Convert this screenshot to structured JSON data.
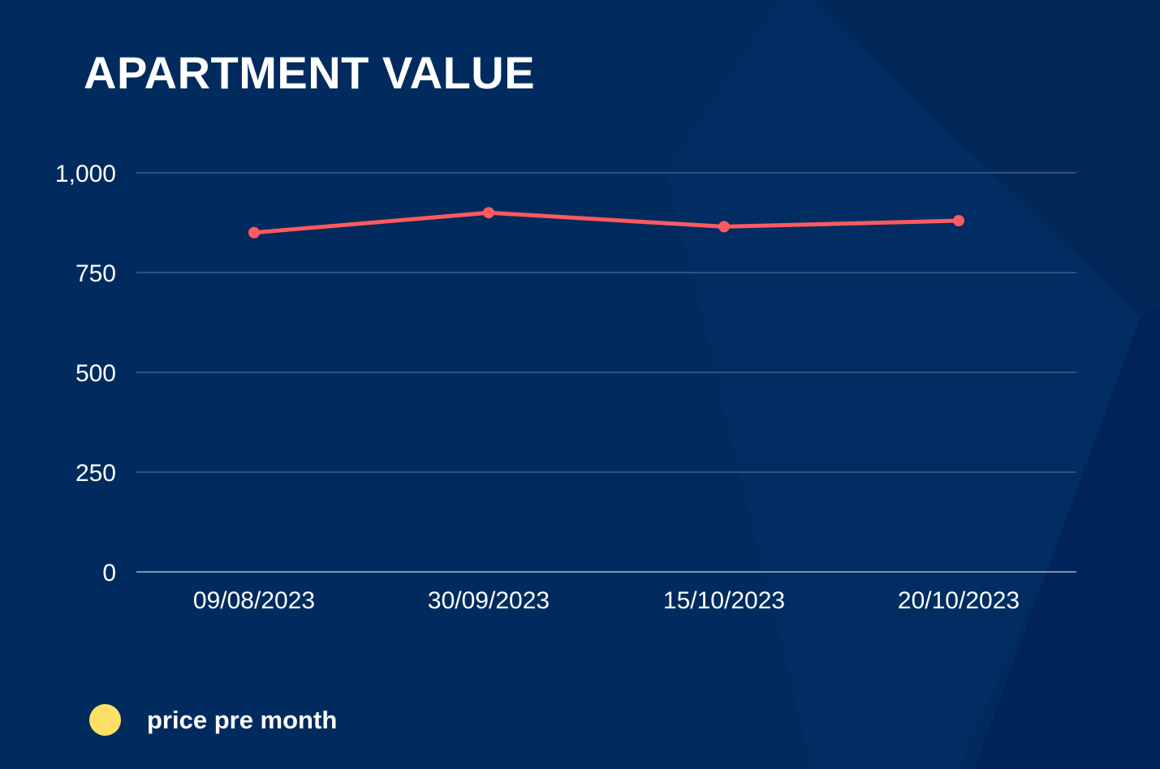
{
  "chart_data": {
    "type": "line",
    "title": "APARTMENT VALUE",
    "categories": [
      "09/08/2023",
      "30/09/2023",
      "15/10/2023",
      "20/10/2023"
    ],
    "series": [
      {
        "name": "price pre month",
        "values": [
          850,
          900,
          865,
          880
        ]
      }
    ],
    "ylim": [
      0,
      1000
    ],
    "yticks": [
      0,
      250,
      500,
      750,
      1000
    ],
    "ytick_labels": [
      "0",
      "250",
      "500",
      "750",
      "1,000"
    ],
    "grid": true,
    "legend_position": "bottom-left",
    "colors": {
      "background": "#012b5e",
      "line": "#ff5a5f",
      "gridline": "#3e5f8a",
      "legend_swatch": "#ffe066",
      "text": "#ffffff"
    }
  }
}
